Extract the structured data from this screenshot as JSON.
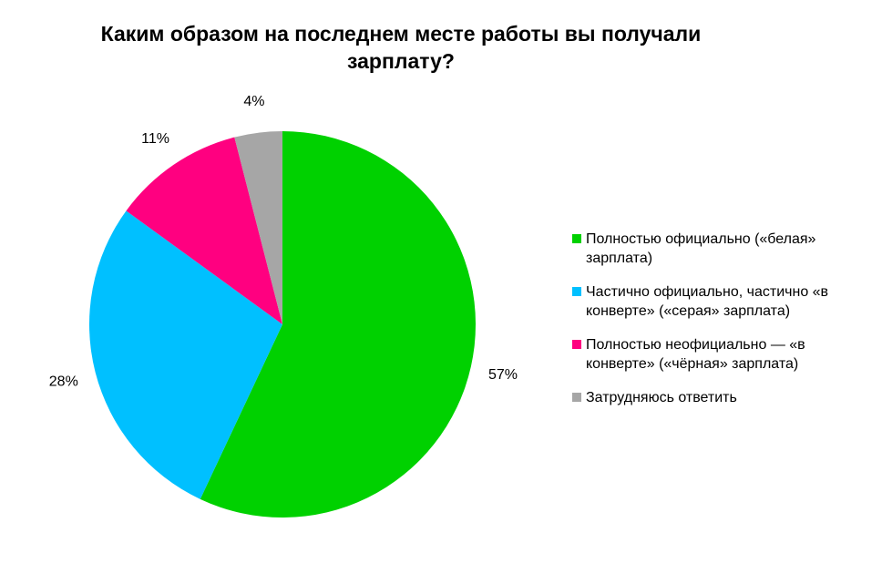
{
  "chart_data": {
    "type": "pie",
    "title": "Каким образом на последнем месте работы вы получали зарплату?",
    "slices": [
      {
        "label": "Полностью официально («белая» зарплата)",
        "value": 57,
        "value_label": "57%",
        "color": "#00d100"
      },
      {
        "label": "Частично официально, частично «в конверте» («серая» зарплата)",
        "value": 28,
        "value_label": "28%",
        "color": "#00c0ff"
      },
      {
        "label": "Полностью неофициально — «в конверте» («чёрная» зарплата)",
        "value": 11,
        "value_label": "11%",
        "color": "#ff0080"
      },
      {
        "label": "Затрудняюсь ответить",
        "value": 4,
        "value_label": "4%",
        "color": "#a6a6a6"
      }
    ],
    "legend_position": "right",
    "start_angle": "12 o'clock",
    "direction": "clockwise"
  }
}
